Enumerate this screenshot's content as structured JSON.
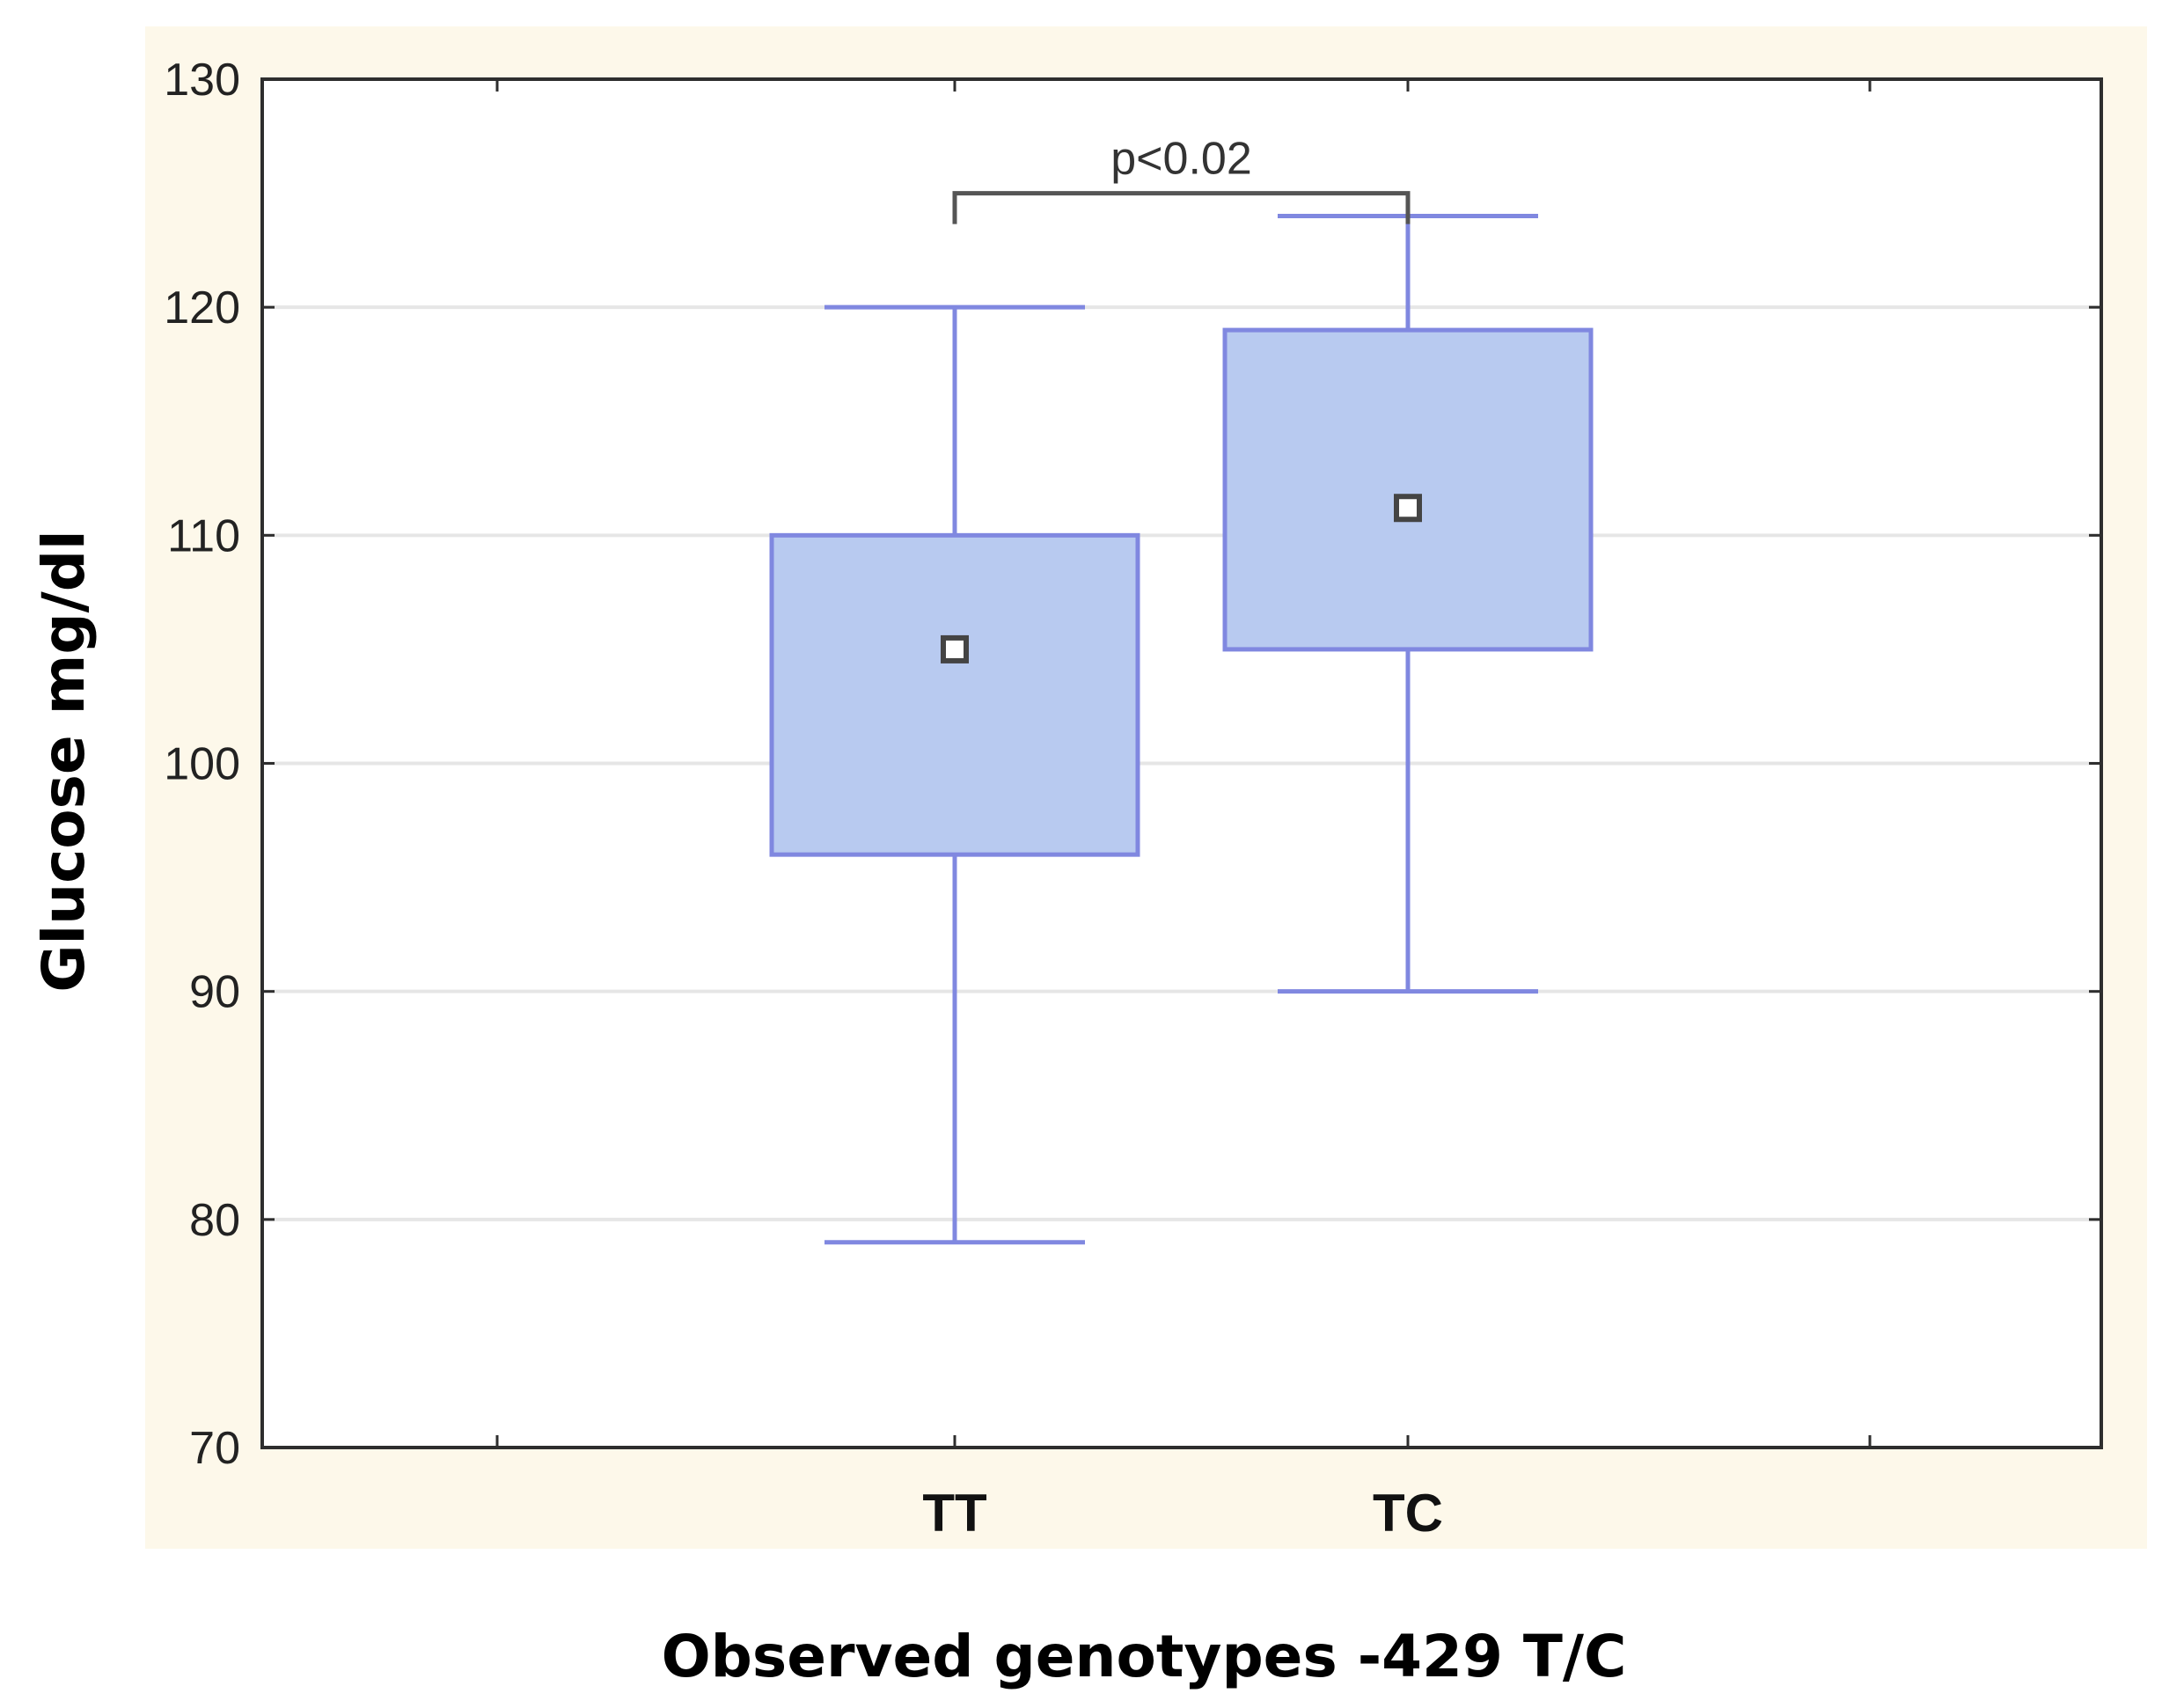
{
  "chart_data": {
    "type": "box",
    "title": "",
    "xlabel": "Observed genotypes -429 T/C",
    "ylabel": "Glucose mg/dl",
    "ylim": [
      70,
      130
    ],
    "yticks": [
      70,
      80,
      90,
      100,
      110,
      120,
      130
    ],
    "yticklabels": [
      "70",
      "80",
      "90",
      "100",
      "110",
      "120",
      "130"
    ],
    "grid": true,
    "categories": [
      "TT",
      "TC"
    ],
    "boxes": [
      {
        "category": "TT",
        "whisker_min": 79,
        "q1": 96,
        "center": 105,
        "q3": 110,
        "whisker_max": 120
      },
      {
        "category": "TC",
        "whisker_min": 90,
        "q1": 105,
        "center": 111.2,
        "q3": 119,
        "whisker_max": 124
      }
    ],
    "annotations": [
      {
        "text": "p<0.02",
        "from": "TT",
        "to": "TC",
        "bracket_y": 125
      }
    ],
    "colors": {
      "plot_area_border": "#fdf8ea",
      "box_fill": "#b8caf0",
      "box_stroke": "#8088e0",
      "grid": "#e6e6e6",
      "center_marker": "#444444"
    }
  }
}
